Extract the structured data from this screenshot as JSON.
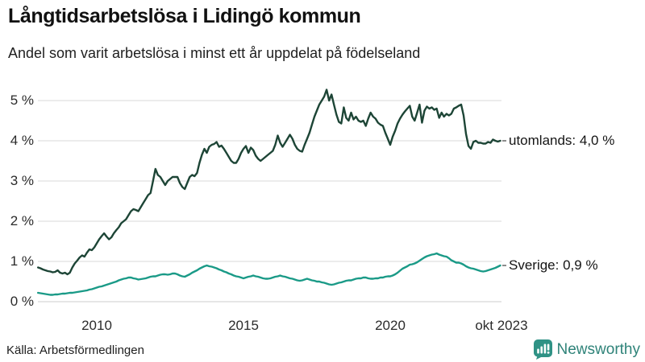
{
  "header": {
    "title": "Långtidsarbetslösa i Lidingö kommun",
    "subtitle": "Andel som varit arbetslösa i minst ett år uppdelat på födelseland"
  },
  "footer": {
    "source": "Källa: Arbetsförmedlingen",
    "brand": "Newsworthy"
  },
  "colors": {
    "utomlands_line": "#1d4536",
    "sverige_line": "#1a9a87",
    "grid": "#e1e1e1",
    "grid_zero": "#d7d7d7",
    "connector": "#5a5a5a",
    "brand_teal": "#2f9285",
    "brand_text": "#2f8379"
  },
  "chart_data": {
    "type": "line",
    "title": "Långtidsarbetslösa i Lidingö kommun",
    "subtitle": "Andel som varit arbetslösa i minst ett år uppdelat på födelseland",
    "x_start": "2008-01",
    "x_end": "2023-10",
    "x_interval": "monthly",
    "ylim": [
      0,
      5.5
    ],
    "grid": true,
    "legend_position": "right-end-labels",
    "y_ticks": [
      {
        "value": 0,
        "label": "0 %"
      },
      {
        "value": 1,
        "label": "1 %"
      },
      {
        "value": 2,
        "label": "2 %"
      },
      {
        "value": 3,
        "label": "3 %"
      },
      {
        "value": 4,
        "label": "4 %"
      },
      {
        "value": 5,
        "label": "5 %"
      }
    ],
    "x_ticks": [
      {
        "year": 2010.0,
        "label": "2010"
      },
      {
        "year": 2015.0,
        "label": "2015"
      },
      {
        "year": 2020.0,
        "label": "2020"
      },
      {
        "year": 2023.79,
        "label": "okt 2023"
      }
    ],
    "series": [
      {
        "name": "utomlands",
        "end_label": "utomlands: 4,0 %",
        "last_value": 4.0,
        "color": "#1d4536",
        "values": [
          0.85,
          0.83,
          0.8,
          0.78,
          0.76,
          0.75,
          0.73,
          0.74,
          0.78,
          0.72,
          0.7,
          0.72,
          0.68,
          0.72,
          0.85,
          0.95,
          1.02,
          1.1,
          1.15,
          1.12,
          1.22,
          1.3,
          1.28,
          1.35,
          1.45,
          1.55,
          1.63,
          1.7,
          1.62,
          1.55,
          1.6,
          1.7,
          1.78,
          1.85,
          1.95,
          2.0,
          2.05,
          2.15,
          2.25,
          2.3,
          2.28,
          2.25,
          2.35,
          2.45,
          2.55,
          2.65,
          2.7,
          3.0,
          3.3,
          3.15,
          3.1,
          3.0,
          2.9,
          3.0,
          3.05,
          3.1,
          3.1,
          3.1,
          2.95,
          2.85,
          2.8,
          2.95,
          3.1,
          3.15,
          3.12,
          3.2,
          3.45,
          3.65,
          3.8,
          3.7,
          3.85,
          3.9,
          3.92,
          3.97,
          3.85,
          3.88,
          3.8,
          3.7,
          3.6,
          3.5,
          3.45,
          3.45,
          3.55,
          3.7,
          3.8,
          3.87,
          3.7,
          3.83,
          3.77,
          3.63,
          3.55,
          3.5,
          3.55,
          3.6,
          3.65,
          3.7,
          3.75,
          3.9,
          4.13,
          3.95,
          3.85,
          3.95,
          4.05,
          4.15,
          4.05,
          3.9,
          3.8,
          3.75,
          3.73,
          3.9,
          4.05,
          4.2,
          4.4,
          4.6,
          4.75,
          4.9,
          5.0,
          5.1,
          5.27,
          5.0,
          5.15,
          4.9,
          4.65,
          4.47,
          4.43,
          4.83,
          4.57,
          4.5,
          4.7,
          4.53,
          4.6,
          4.5,
          4.47,
          4.5,
          4.37,
          4.55,
          4.7,
          4.6,
          4.55,
          4.45,
          4.4,
          4.37,
          4.2,
          4.05,
          3.9,
          4.1,
          4.25,
          4.43,
          4.55,
          4.65,
          4.73,
          4.8,
          4.87,
          4.6,
          4.5,
          4.7,
          4.9,
          4.45,
          4.75,
          4.85,
          4.8,
          4.83,
          4.77,
          4.8,
          4.57,
          4.7,
          4.6,
          4.67,
          4.63,
          4.67,
          4.8,
          4.83,
          4.87,
          4.9,
          4.63,
          4.17,
          3.87,
          3.8,
          3.97,
          4.0,
          3.95,
          3.95,
          3.93,
          3.93,
          3.97,
          3.95,
          4.03,
          4.0,
          3.98,
          4.0
        ]
      },
      {
        "name": "Sverige",
        "end_label": "Sverige: 0,9 %",
        "last_value": 0.9,
        "color": "#1a9a87",
        "values": [
          0.22,
          0.21,
          0.2,
          0.19,
          0.18,
          0.17,
          0.17,
          0.18,
          0.18,
          0.19,
          0.2,
          0.2,
          0.21,
          0.22,
          0.22,
          0.23,
          0.24,
          0.25,
          0.26,
          0.27,
          0.28,
          0.3,
          0.31,
          0.33,
          0.35,
          0.37,
          0.38,
          0.4,
          0.42,
          0.44,
          0.46,
          0.48,
          0.5,
          0.53,
          0.55,
          0.57,
          0.58,
          0.6,
          0.6,
          0.58,
          0.57,
          0.55,
          0.56,
          0.57,
          0.58,
          0.6,
          0.62,
          0.63,
          0.63,
          0.65,
          0.67,
          0.68,
          0.68,
          0.67,
          0.68,
          0.7,
          0.7,
          0.68,
          0.65,
          0.63,
          0.62,
          0.65,
          0.68,
          0.72,
          0.75,
          0.78,
          0.82,
          0.85,
          0.88,
          0.9,
          0.88,
          0.87,
          0.85,
          0.83,
          0.8,
          0.78,
          0.75,
          0.73,
          0.7,
          0.68,
          0.65,
          0.63,
          0.62,
          0.6,
          0.58,
          0.6,
          0.62,
          0.63,
          0.65,
          0.63,
          0.62,
          0.6,
          0.58,
          0.57,
          0.57,
          0.58,
          0.6,
          0.62,
          0.63,
          0.65,
          0.63,
          0.62,
          0.6,
          0.58,
          0.57,
          0.55,
          0.53,
          0.52,
          0.53,
          0.55,
          0.57,
          0.55,
          0.53,
          0.52,
          0.5,
          0.5,
          0.48,
          0.47,
          0.45,
          0.43,
          0.42,
          0.43,
          0.45,
          0.47,
          0.48,
          0.5,
          0.52,
          0.53,
          0.53,
          0.55,
          0.57,
          0.58,
          0.58,
          0.6,
          0.6,
          0.58,
          0.57,
          0.57,
          0.58,
          0.58,
          0.6,
          0.6,
          0.62,
          0.63,
          0.63,
          0.65,
          0.68,
          0.72,
          0.77,
          0.82,
          0.85,
          0.88,
          0.92,
          0.93,
          0.95,
          0.98,
          1.02,
          1.06,
          1.1,
          1.13,
          1.15,
          1.17,
          1.18,
          1.2,
          1.17,
          1.15,
          1.13,
          1.12,
          1.08,
          1.03,
          1.0,
          0.97,
          0.97,
          0.95,
          0.92,
          0.88,
          0.85,
          0.83,
          0.82,
          0.8,
          0.78,
          0.76,
          0.75,
          0.76,
          0.78,
          0.8,
          0.82,
          0.84,
          0.87,
          0.9
        ]
      }
    ]
  }
}
